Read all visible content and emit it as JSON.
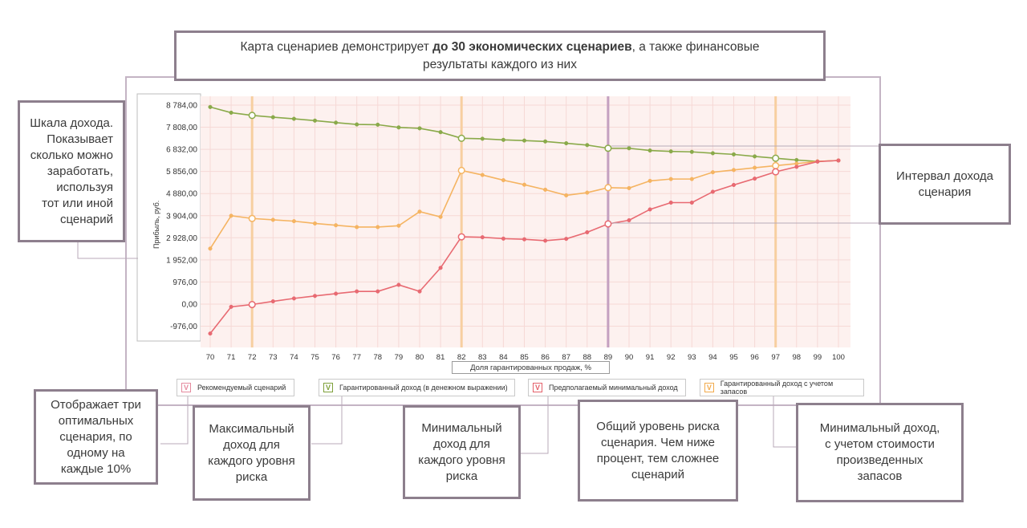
{
  "header": {
    "title_prefix": "Карта сценариев демонстрирует ",
    "title_bold": "до 30 экономических сценариев",
    "title_suffix": ", а также финансовые",
    "title_line2": "результаты каждого из них"
  },
  "callouts": {
    "income_scale": "Шкала дохода.\nПоказывает\nсколько можно\nзаработать,\nиспользуя\nтот или иной\nсценарий",
    "interval": "Интервал дохода\nсценария",
    "optimal": "Отображает три\nоптимальных\nсценария, по\nодному на\nкаждые 10%",
    "max_income": "Максимальный\nдоход для\nкаждого уровня\nриска",
    "min_income": "Минимальный\nдоход для\nкаждого уровня\nриска",
    "risk_level": "Общий уровень риска\nсценария. Чем ниже\nпроцент, тем сложнее\nсценарий",
    "min_income_stock": "Минимальный доход,\nс учетом стоимости\nпроизведенных\nзапасов"
  },
  "legend": [
    {
      "label": "Рекомендуемый сценарий",
      "color": "#e58a9e",
      "mark": "V"
    },
    {
      "label": "Гарантированный доход (в денежном выражении)",
      "color": "#7ea03a",
      "mark": "V"
    },
    {
      "label": "Предполагаемый минимальный доход",
      "color": "#e4606a",
      "mark": "V"
    },
    {
      "label": "Гарантированный доход с учетом запасов",
      "color": "#f2aa4c",
      "mark": "V"
    }
  ],
  "chart_data": {
    "type": "line",
    "ylabel": "Прибыль, руб.",
    "xlabel": "Доля гарантированных продаж, %",
    "x": [
      70,
      71,
      72,
      73,
      74,
      75,
      76,
      77,
      78,
      79,
      80,
      81,
      82,
      83,
      84,
      85,
      86,
      87,
      88,
      89,
      90,
      91,
      92,
      93,
      94,
      95,
      96,
      97,
      98,
      99,
      100
    ],
    "yticks": [
      "8 784,00",
      "7 808,00",
      "6 832,00",
      "5 856,00",
      "4 880,00",
      "3 904,00",
      "2 928,00",
      "1 952,00",
      "976,00",
      "0,00",
      "-976,00"
    ],
    "ylim": [
      -1400,
      9000
    ],
    "series": [
      {
        "name": "Гарантированный доход (в денежном выражении)",
        "color": "#8aaa4a",
        "values": [
          8700,
          8450,
          8330,
          8250,
          8180,
          8100,
          8010,
          7930,
          7920,
          7800,
          7760,
          7590,
          7320,
          7300,
          7250,
          7220,
          7180,
          7100,
          7020,
          6880,
          6880,
          6780,
          6740,
          6720,
          6660,
          6610,
          6520,
          6440,
          6360,
          6300,
          6340
        ]
      },
      {
        "name": "Гарантированный доход с учетом запасов",
        "color": "#f5b462",
        "values": [
          2450,
          3900,
          3780,
          3720,
          3660,
          3560,
          3480,
          3400,
          3400,
          3460,
          4080,
          3850,
          5900,
          5700,
          5470,
          5270,
          5050,
          4800,
          4920,
          5140,
          5120,
          5440,
          5520,
          5520,
          5820,
          5920,
          6020,
          6110,
          6200,
          6300,
          6340
        ]
      },
      {
        "name": "Предполагаемый минимальный доход",
        "color": "#e86a72",
        "values": [
          -1700,
          -120,
          -20,
          120,
          250,
          360,
          460,
          560,
          560,
          850,
          560,
          1600,
          2970,
          2950,
          2890,
          2860,
          2800,
          2880,
          3170,
          3540,
          3700,
          4180,
          4480,
          4480,
          4960,
          5260,
          5540,
          5840,
          6060,
          6290,
          6340
        ]
      }
    ],
    "highlight_columns": [
      {
        "x": 72,
        "color": "#f7cfa0"
      },
      {
        "x": 82,
        "color": "#f7cfa0"
      },
      {
        "x": 89,
        "color": "#c4a0c0"
      },
      {
        "x": 97,
        "color": "#f7cfa0"
      }
    ],
    "hollow_markers_at": [
      72,
      82,
      89,
      97
    ],
    "plot_background": "#fdf1ef",
    "grid": true
  }
}
